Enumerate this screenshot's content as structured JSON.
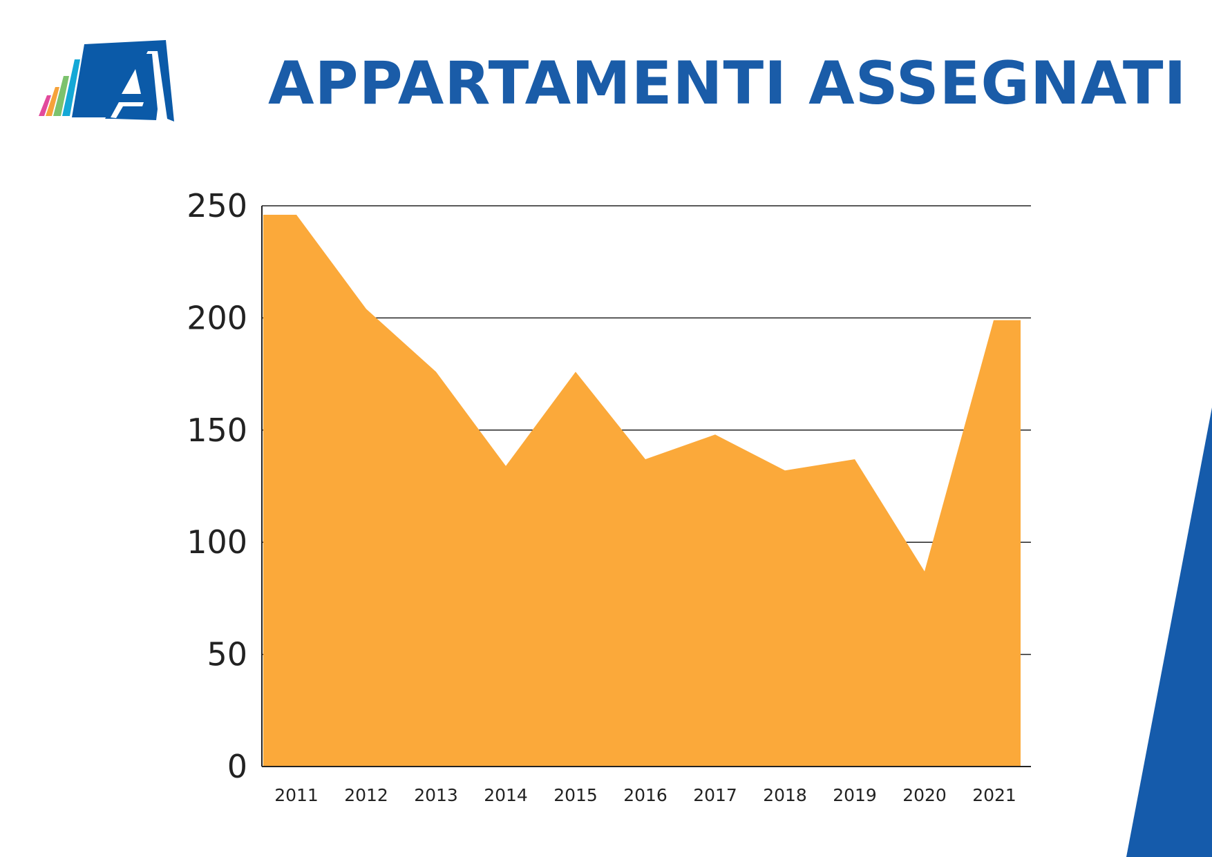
{
  "title": "APPARTAMENTI ASSEGNATI",
  "colors": {
    "title": "#1a5ca8",
    "area": "#fba93a",
    "gridline": "#222222",
    "accent_shape": "#155bab",
    "logo_blue": "#0b5aa8",
    "logo_stripes": [
      "#e24a9c",
      "#f6a23a",
      "#7cc26d",
      "#14a8d6"
    ]
  },
  "chart_data": {
    "type": "area",
    "title": "APPARTAMENTI ASSEGNATI",
    "xlabel": "",
    "ylabel": "",
    "categories": [
      "2011",
      "2012",
      "2013",
      "2014",
      "2015",
      "2016",
      "2017",
      "2018",
      "2019",
      "2020",
      "2021"
    ],
    "values": [
      246,
      204,
      176,
      134,
      176,
      137,
      148,
      132,
      137,
      87,
      199
    ],
    "ylim": [
      0,
      250
    ],
    "yticks": [
      0,
      50,
      100,
      150,
      200,
      250
    ],
    "grid": "horizontal",
    "legend": "none"
  }
}
